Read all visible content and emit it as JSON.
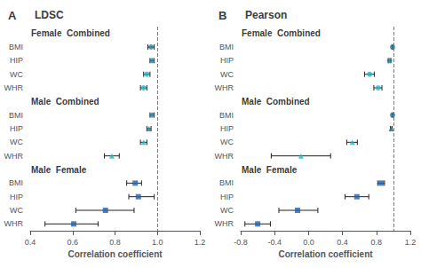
{
  "chart_data": [
    {
      "type": "forest",
      "panel_label": "A",
      "title": "LDSC",
      "xlabel": "Correlation coefficient",
      "xlim": [
        0.4,
        1.2
      ],
      "xticks": [
        0.4,
        0.6,
        0.8,
        {
          "value": 1.0,
          "label": "1.0"
        },
        1.2
      ],
      "reference_line": 1.0,
      "grid": false,
      "groups": [
        {
          "label": "Female  Combined",
          "items": [
            {
              "name": "BMI",
              "value": 0.97,
              "lo": 0.955,
              "hi": 0.985,
              "color": "#2a7fa0",
              "marker": "circle"
            },
            {
              "name": "HIP",
              "value": 0.975,
              "lo": 0.965,
              "hi": 0.985,
              "color": "#2a7fa0",
              "marker": "circle"
            },
            {
              "name": "WC",
              "value": 0.95,
              "lo": 0.935,
              "hi": 0.965,
              "color": "#1ab8c8",
              "marker": "circle"
            },
            {
              "name": "WHR",
              "value": 0.935,
              "lo": 0.92,
              "hi": 0.95,
              "color": "#1ab8c8",
              "marker": "circle"
            }
          ]
        },
        {
          "label": "Male  Combined",
          "items": [
            {
              "name": "BMI",
              "value": 0.975,
              "lo": 0.965,
              "hi": 0.985,
              "color": "#2a7fa0",
              "marker": "circle"
            },
            {
              "name": "HIP",
              "value": 0.96,
              "lo": 0.95,
              "hi": 0.97,
              "color": "#2a7fa0",
              "marker": "triangle"
            },
            {
              "name": "WC",
              "value": 0.935,
              "lo": 0.92,
              "hi": 0.95,
              "color": "#1ab8c8",
              "marker": "triangle"
            },
            {
              "name": "WHR",
              "value": 0.785,
              "lo": 0.75,
              "hi": 0.82,
              "color": "#1ab8c8",
              "marker": "triangle"
            }
          ]
        },
        {
          "label": "Male  Female",
          "items": [
            {
              "name": "BMI",
              "value": 0.895,
              "lo": 0.855,
              "hi": 0.925,
              "color": "#2060b0",
              "marker": "square"
            },
            {
              "name": "HIP",
              "value": 0.91,
              "lo": 0.865,
              "hi": 0.985,
              "color": "#2060b0",
              "marker": "square"
            },
            {
              "name": "WC",
              "value": 0.755,
              "lo": 0.615,
              "hi": 0.89,
              "color": "#2060b0",
              "marker": "square"
            },
            {
              "name": "WHR",
              "value": 0.605,
              "lo": 0.47,
              "hi": 0.72,
              "color": "#2060b0",
              "marker": "square"
            }
          ]
        }
      ]
    },
    {
      "type": "forest",
      "panel_label": "B",
      "title": "Pearson",
      "xlabel": "Correlation coefficient",
      "xlim": [
        -0.8,
        1.2
      ],
      "xticks": [
        -0.8,
        -0.4,
        {
          "value": 0,
          "label": "0.0"
        },
        0.4,
        0.8,
        1.2
      ],
      "reference_line": 1.0,
      "grid": false,
      "groups": [
        {
          "label": "Female  Combined",
          "items": [
            {
              "name": "BMI",
              "value": 0.99,
              "lo": 0.982,
              "hi": 0.998,
              "color": "#2a7fa0",
              "marker": "circle"
            },
            {
              "name": "HIP",
              "value": 0.955,
              "lo": 0.94,
              "hi": 0.97,
              "color": "#2a7fa0",
              "marker": "circle"
            },
            {
              "name": "WC",
              "value": 0.72,
              "lo": 0.66,
              "hi": 0.775,
              "color": "#1ab8c8",
              "marker": "circle"
            },
            {
              "name": "WHR",
              "value": 0.82,
              "lo": 0.77,
              "hi": 0.865,
              "color": "#1ab8c8",
              "marker": "circle"
            }
          ]
        },
        {
          "label": "Male  Combined",
          "items": [
            {
              "name": "BMI",
              "value": 0.99,
              "lo": 0.982,
              "hi": 0.998,
              "color": "#2a7fa0",
              "marker": "circle"
            },
            {
              "name": "HIP",
              "value": 0.975,
              "lo": 0.965,
              "hi": 0.985,
              "color": "#2a7fa0",
              "marker": "triangle"
            },
            {
              "name": "WC",
              "value": 0.515,
              "lo": 0.45,
              "hi": 0.575,
              "color": "#1ab8c8",
              "marker": "triangle"
            },
            {
              "name": "WHR",
              "value": -0.09,
              "lo": -0.44,
              "hi": 0.26,
              "color": "#1ab8c8",
              "marker": "triangle"
            }
          ]
        },
        {
          "label": "Male  Female",
          "items": [
            {
              "name": "BMI",
              "value": 0.855,
              "lo": 0.815,
              "hi": 0.895,
              "color": "#2060b0",
              "marker": "square"
            },
            {
              "name": "HIP",
              "value": 0.57,
              "lo": 0.43,
              "hi": 0.71,
              "color": "#2060b0",
              "marker": "square"
            },
            {
              "name": "WC",
              "value": -0.13,
              "lo": -0.35,
              "hi": 0.11,
              "color": "#2060b0",
              "marker": "square"
            },
            {
              "name": "WHR",
              "value": -0.6,
              "lo": -0.75,
              "hi": -0.45,
              "color": "#2060b0",
              "marker": "square"
            }
          ]
        }
      ]
    }
  ]
}
